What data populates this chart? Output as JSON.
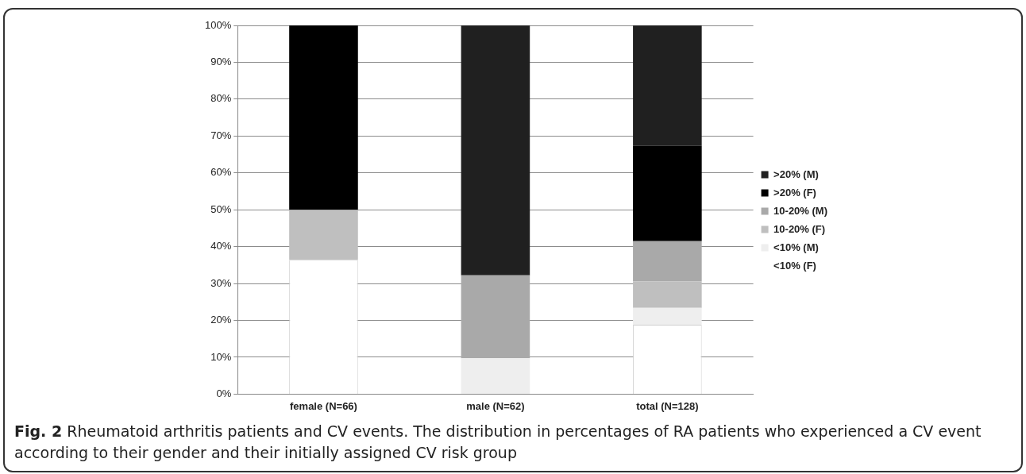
{
  "chart_data": {
    "type": "bar",
    "stacked": true,
    "categories": [
      "female (N=66)",
      "male (N=62)",
      "total (N=128)"
    ],
    "series": [
      {
        "name": "<10% (F)",
        "color": "#ffffff",
        "values": [
          36.4,
          0,
          18.8
        ]
      },
      {
        "name": "<10% (M)",
        "color": "#eeeeee",
        "values": [
          0,
          9.7,
          4.6
        ]
      },
      {
        "name": "10-20% (F)",
        "color": "#bfbfbf",
        "values": [
          13.6,
          0,
          7.2
        ]
      },
      {
        "name": "10-20% (M)",
        "color": "#a9a9a9",
        "values": [
          0,
          22.5,
          10.9
        ]
      },
      {
        "name": ">20% (F)",
        "color": "#000000",
        "values": [
          50,
          0,
          25.8
        ]
      },
      {
        "name": ">20% (M)",
        "color": "#202020",
        "values": [
          0,
          67.8,
          32.7
        ]
      }
    ],
    "ylim": [
      0,
      100
    ],
    "yticks": [
      {
        "value": 0,
        "label": "0%"
      },
      {
        "value": 10,
        "label": "10%"
      },
      {
        "value": 20,
        "label": "20%"
      },
      {
        "value": 30,
        "label": "30%"
      },
      {
        "value": 40,
        "label": "40%"
      },
      {
        "value": 50,
        "label": "50%"
      },
      {
        "value": 60,
        "label": "60%"
      },
      {
        "value": 70,
        "label": "70%"
      },
      {
        "value": 80,
        "label": "80%"
      },
      {
        "value": 90,
        "label": "90%"
      },
      {
        "value": 100,
        "label": "100%"
      }
    ],
    "grid": "y",
    "legend": "right",
    "annotations": [
      "Fig. 2",
      "Rheumatoid arthritis patients and CV events. The distribution in percentages of RA patients who experienced a CV event according to their gender and their initially assigned CV risk group"
    ]
  }
}
